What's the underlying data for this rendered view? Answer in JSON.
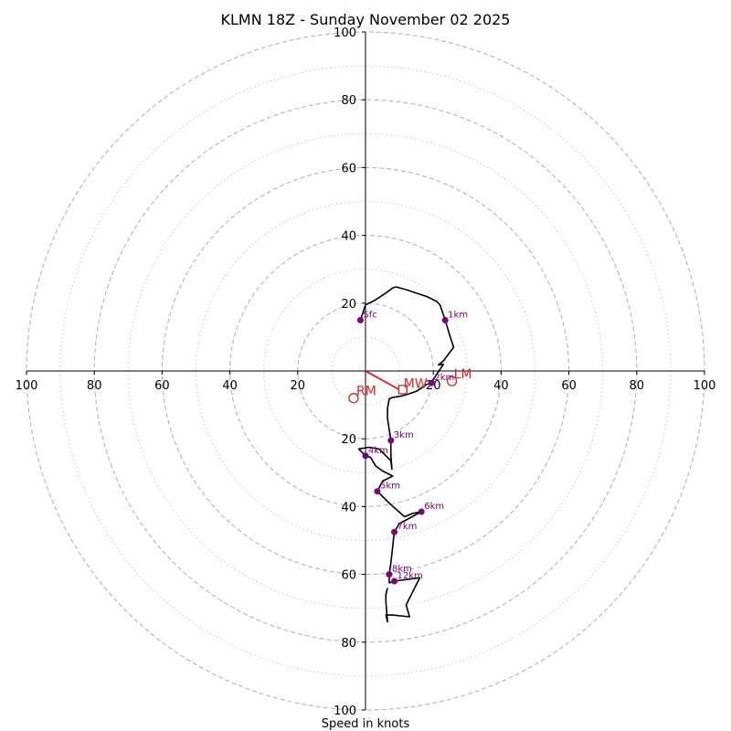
{
  "chart_data": {
    "type": "hodograph",
    "title": "KLMN 18Z - Sunday November 02 2025",
    "xlabel": "Speed in knots",
    "ring_max": 100,
    "rings_major": [
      20,
      40,
      60,
      80,
      100
    ],
    "rings_minor": [
      10,
      30,
      50,
      70,
      90
    ],
    "x_ticks": [
      {
        "value": -100,
        "label": "100"
      },
      {
        "value": -80,
        "label": "80"
      },
      {
        "value": -60,
        "label": "60"
      },
      {
        "value": -40,
        "label": "40"
      },
      {
        "value": -20,
        "label": "20"
      },
      {
        "value": 20,
        "label": "20"
      },
      {
        "value": 40,
        "label": "40"
      },
      {
        "value": 60,
        "label": "60"
      },
      {
        "value": 80,
        "label": "80"
      },
      {
        "value": 100,
        "label": "100"
      }
    ],
    "y_ticks": [
      {
        "value": 100,
        "label": "100"
      },
      {
        "value": 80,
        "label": "80"
      },
      {
        "value": 60,
        "label": "60"
      },
      {
        "value": 40,
        "label": "40"
      },
      {
        "value": 20,
        "label": "20"
      },
      {
        "value": -20,
        "label": "20"
      },
      {
        "value": -40,
        "label": "40"
      },
      {
        "value": -60,
        "label": "60"
      },
      {
        "value": -80,
        "label": "80"
      },
      {
        "value": -100,
        "label": "100"
      }
    ],
    "trace_color": "#000000",
    "marker_color": "#800080",
    "vector_color": "#ff0000",
    "trace_units": "knots (u, v)",
    "trace": [
      [
        -1.5,
        15
      ],
      [
        0,
        19.5
      ],
      [
        3,
        21
      ],
      [
        6,
        23
      ],
      [
        8,
        24.5
      ],
      [
        9,
        24.8
      ],
      [
        12,
        24
      ],
      [
        15,
        23
      ],
      [
        18,
        22
      ],
      [
        21,
        20.5
      ],
      [
        22,
        19.5
      ],
      [
        23.5,
        15
      ],
      [
        25,
        10
      ],
      [
        26,
        7
      ],
      [
        24.5,
        5
      ],
      [
        23,
        3
      ],
      [
        21.5,
        1.8
      ],
      [
        23,
        2
      ],
      [
        22,
        0.5
      ],
      [
        20,
        -2.5
      ],
      [
        19.5,
        -3.5
      ],
      [
        18,
        -4
      ],
      [
        15,
        -6
      ],
      [
        12,
        -7
      ],
      [
        10,
        -7.5
      ],
      [
        8,
        -7.8
      ],
      [
        7,
        -8.2
      ],
      [
        6.5,
        -11
      ],
      [
        6.5,
        -14
      ],
      [
        7.5,
        -20.5
      ],
      [
        7.5,
        -25
      ],
      [
        7.8,
        -29
      ],
      [
        7.5,
        -26.5
      ],
      [
        4,
        -23
      ],
      [
        1,
        -22.5
      ],
      [
        -2,
        -23
      ],
      [
        0,
        -25
      ],
      [
        1.5,
        -25.5
      ],
      [
        3,
        -28
      ],
      [
        5,
        -29.5
      ],
      [
        8,
        -31
      ],
      [
        5,
        -32.5
      ],
      [
        3.5,
        -35.5
      ],
      [
        7,
        -39
      ],
      [
        11.5,
        -43
      ],
      [
        14,
        -42
      ],
      [
        16.5,
        -41.5
      ],
      [
        10,
        -45
      ],
      [
        8.5,
        -47.5
      ],
      [
        8,
        -52
      ],
      [
        7.5,
        -56.5
      ],
      [
        7,
        -60
      ],
      [
        7,
        -62.5
      ],
      [
        8.5,
        -62
      ],
      [
        16,
        -61
      ],
      [
        12,
        -69
      ],
      [
        13,
        -72.5
      ],
      [
        8,
        -72
      ],
      [
        6,
        -72
      ],
      [
        6.5,
        -74
      ],
      [
        6,
        -68
      ],
      [
        6,
        -66
      ],
      [
        6.5,
        -64
      ]
    ],
    "height_markers": [
      {
        "label": "Sfc",
        "u": -1.5,
        "v": 15
      },
      {
        "label": "1km",
        "u": 23.5,
        "v": 15
      },
      {
        "label": "2km",
        "u": 19.5,
        "v": -3.5
      },
      {
        "label": "3km",
        "u": 7.5,
        "v": -20.5
      },
      {
        "label": "4km",
        "u": 0,
        "v": -25
      },
      {
        "label": "5km",
        "u": 3.5,
        "v": -35.5
      },
      {
        "label": "6km",
        "u": 16.5,
        "v": -41.5
      },
      {
        "label": "7km",
        "u": 8.5,
        "v": -47.5
      },
      {
        "label": "8km",
        "u": 7,
        "v": -60
      },
      {
        "label": "12km",
        "u": 8.5,
        "v": -62
      }
    ],
    "storm_motion": {
      "mean_wind": {
        "label": "MW",
        "u": 11,
        "v": -5.5,
        "color": "#dd2222"
      },
      "right_mover": {
        "label": "RM",
        "u": -3.5,
        "v": -8,
        "color": "#dd2222"
      },
      "left_mover": {
        "label": "LM",
        "u": 25.5,
        "v": -3,
        "color": "#dd2222"
      },
      "shear_vector": {
        "u_start": 0,
        "v_start": 0,
        "u_end": 10,
        "v_end": -5.5
      }
    }
  }
}
